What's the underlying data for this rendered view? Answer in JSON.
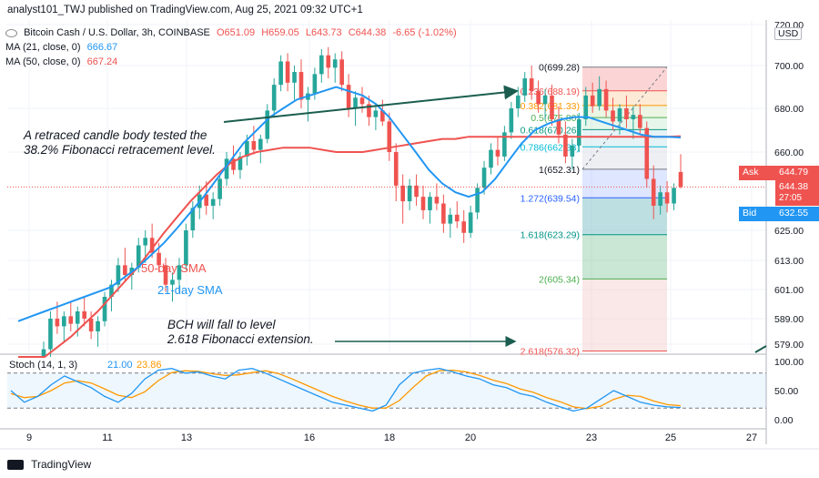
{
  "header": {
    "text": "analyst101_TWJ published on TradingView.com, Aug 25, 2021 09:32 UTC+1"
  },
  "legend": {
    "symbol": "Bitcoin Cash / U.S. Dollar, 3h, COINBASE",
    "open": "O651.09",
    "high": "H659.05",
    "low": "L643.73",
    "close": "C644.38",
    "change": "-6.65 (-1.02%)",
    "ma21_label": "MA (21, close, 0)",
    "ma21_value": "666.67",
    "ma50_label": "MA (50, close, 0)",
    "ma50_value": "667.24"
  },
  "price_axis": {
    "currency": "USD",
    "ticks": [
      "720.00",
      "700.00",
      "680.00",
      "660.00",
      "625.00",
      "613.00",
      "601.00",
      "589.00",
      "579.00"
    ],
    "ask_label": "Ask",
    "ask_value": "644.79",
    "last_value": "644.38",
    "countdown": "27:05",
    "bid_label": "Bid",
    "bid_value": "632.55"
  },
  "stoch": {
    "label": "Stoch (14, 1, 3)",
    "k_value": "21.00",
    "d_value": "23.86",
    "ticks": [
      "100.00",
      "50.00",
      "0.00"
    ]
  },
  "time_axis": {
    "ticks": [
      "9",
      "11",
      "13",
      "16",
      "18",
      "20",
      "23",
      "25",
      "27"
    ]
  },
  "annotations": {
    "fib_test": "A retraced candle body tested the\n38.2% Fibonacci retracement level.",
    "sma50": "50-day SMA",
    "sma21": "21-day SMA",
    "bch_fall": "BCH will fall to level\n2.618  Fibonacci extension."
  },
  "colors": {
    "up": "#26a69a",
    "down": "#ef5350",
    "ma21": "#2196f3",
    "ma50": "#ef5350",
    "stoch_k": "#2196f3",
    "stoch_d": "#ff9800"
  },
  "footer": {
    "brand": "TradingView"
  },
  "chart_data": {
    "type": "candlestick",
    "symbol": "BCH/USD",
    "timeframe": "3h",
    "fibonacci": [
      {
        "level": "0",
        "price": 699.28,
        "label": "0(699.28)"
      },
      {
        "level": "0.236",
        "price": 688.19,
        "label": "0.236(688.19)"
      },
      {
        "level": "0.382",
        "price": 681.33,
        "label": "0.382(681.33)"
      },
      {
        "level": "0.5",
        "price": 675.8,
        "label": "0.5(675.80)"
      },
      {
        "level": "0.618",
        "price": 670.26,
        "label": "0.618(670.26)"
      },
      {
        "level": "0.786",
        "price": 662.38,
        "label": "0.786(662.38)"
      },
      {
        "level": "1",
        "price": 652.31,
        "label": "1(652.31)"
      },
      {
        "level": "1.272",
        "price": 639.54,
        "label": "1.272(639.54)"
      },
      {
        "level": "1.618",
        "price": 623.29,
        "label": "1.618(623.29)"
      },
      {
        "level": "2",
        "price": 605.34,
        "label": "2(605.34)"
      },
      {
        "level": "2.618",
        "price": 576.32,
        "label": "2.618(576.32)"
      }
    ],
    "candles": [
      {
        "o": 570,
        "h": 580,
        "l": 566,
        "c": 577
      },
      {
        "o": 577,
        "h": 592,
        "l": 574,
        "c": 589
      },
      {
        "o": 589,
        "h": 596,
        "l": 583,
        "c": 586
      },
      {
        "o": 586,
        "h": 592,
        "l": 580,
        "c": 590
      },
      {
        "o": 590,
        "h": 596,
        "l": 584,
        "c": 587
      },
      {
        "o": 587,
        "h": 594,
        "l": 582,
        "c": 592
      },
      {
        "o": 592,
        "h": 598,
        "l": 586,
        "c": 589
      },
      {
        "o": 589,
        "h": 592,
        "l": 581,
        "c": 584
      },
      {
        "o": 584,
        "h": 590,
        "l": 578,
        "c": 588
      },
      {
        "o": 588,
        "h": 600,
        "l": 586,
        "c": 598
      },
      {
        "o": 598,
        "h": 605,
        "l": 592,
        "c": 603
      },
      {
        "o": 603,
        "h": 614,
        "l": 600,
        "c": 611
      },
      {
        "o": 611,
        "h": 618,
        "l": 604,
        "c": 607
      },
      {
        "o": 607,
        "h": 612,
        "l": 601,
        "c": 610
      },
      {
        "o": 610,
        "h": 622,
        "l": 608,
        "c": 619
      },
      {
        "o": 619,
        "h": 625,
        "l": 612,
        "c": 622
      },
      {
        "o": 622,
        "h": 628,
        "l": 614,
        "c": 616
      },
      {
        "o": 616,
        "h": 620,
        "l": 608,
        "c": 611
      },
      {
        "o": 611,
        "h": 614,
        "l": 600,
        "c": 603
      },
      {
        "o": 603,
        "h": 608,
        "l": 596,
        "c": 605
      },
      {
        "o": 605,
        "h": 614,
        "l": 600,
        "c": 611
      },
      {
        "o": 611,
        "h": 628,
        "l": 609,
        "c": 625
      },
      {
        "o": 625,
        "h": 638,
        "l": 622,
        "c": 635
      },
      {
        "o": 635,
        "h": 645,
        "l": 630,
        "c": 641
      },
      {
        "o": 641,
        "h": 647,
        "l": 632,
        "c": 636
      },
      {
        "o": 636,
        "h": 642,
        "l": 630,
        "c": 639
      },
      {
        "o": 639,
        "h": 650,
        "l": 636,
        "c": 648
      },
      {
        "o": 648,
        "h": 660,
        "l": 645,
        "c": 657
      },
      {
        "o": 657,
        "h": 663,
        "l": 650,
        "c": 652
      },
      {
        "o": 652,
        "h": 660,
        "l": 648,
        "c": 658
      },
      {
        "o": 658,
        "h": 668,
        "l": 654,
        "c": 665
      },
      {
        "o": 665,
        "h": 672,
        "l": 659,
        "c": 661
      },
      {
        "o": 661,
        "h": 668,
        "l": 655,
        "c": 666
      },
      {
        "o": 666,
        "h": 682,
        "l": 664,
        "c": 679
      },
      {
        "o": 679,
        "h": 694,
        "l": 676,
        "c": 691
      },
      {
        "o": 691,
        "h": 705,
        "l": 688,
        "c": 702
      },
      {
        "o": 702,
        "h": 706,
        "l": 688,
        "c": 692
      },
      {
        "o": 692,
        "h": 700,
        "l": 684,
        "c": 697
      },
      {
        "o": 697,
        "h": 703,
        "l": 680,
        "c": 684
      },
      {
        "o": 684,
        "h": 690,
        "l": 674,
        "c": 687
      },
      {
        "o": 687,
        "h": 699,
        "l": 684,
        "c": 696
      },
      {
        "o": 696,
        "h": 708,
        "l": 692,
        "c": 705
      },
      {
        "o": 705,
        "h": 709,
        "l": 694,
        "c": 699
      },
      {
        "o": 699,
        "h": 706,
        "l": 692,
        "c": 703
      },
      {
        "o": 703,
        "h": 707,
        "l": 688,
        "c": 691
      },
      {
        "o": 691,
        "h": 696,
        "l": 676,
        "c": 680
      },
      {
        "o": 680,
        "h": 688,
        "l": 672,
        "c": 685
      },
      {
        "o": 685,
        "h": 690,
        "l": 678,
        "c": 682
      },
      {
        "o": 682,
        "h": 686,
        "l": 672,
        "c": 676
      },
      {
        "o": 676,
        "h": 682,
        "l": 670,
        "c": 679
      },
      {
        "o": 679,
        "h": 684,
        "l": 672,
        "c": 674
      },
      {
        "o": 674,
        "h": 678,
        "l": 656,
        "c": 660
      },
      {
        "o": 660,
        "h": 664,
        "l": 638,
        "c": 645
      },
      {
        "o": 645,
        "h": 650,
        "l": 628,
        "c": 638
      },
      {
        "o": 638,
        "h": 648,
        "l": 634,
        "c": 645
      },
      {
        "o": 645,
        "h": 650,
        "l": 636,
        "c": 640
      },
      {
        "o": 640,
        "h": 645,
        "l": 630,
        "c": 634
      },
      {
        "o": 634,
        "h": 642,
        "l": 628,
        "c": 640
      },
      {
        "o": 640,
        "h": 646,
        "l": 634,
        "c": 637
      },
      {
        "o": 637,
        "h": 641,
        "l": 624,
        "c": 628
      },
      {
        "o": 628,
        "h": 635,
        "l": 622,
        "c": 632
      },
      {
        "o": 632,
        "h": 638,
        "l": 626,
        "c": 629
      },
      {
        "o": 629,
        "h": 634,
        "l": 620,
        "c": 624
      },
      {
        "o": 624,
        "h": 636,
        "l": 622,
        "c": 633
      },
      {
        "o": 633,
        "h": 646,
        "l": 630,
        "c": 644
      },
      {
        "o": 644,
        "h": 656,
        "l": 641,
        "c": 653
      },
      {
        "o": 653,
        "h": 664,
        "l": 650,
        "c": 661
      },
      {
        "o": 661,
        "h": 667,
        "l": 654,
        "c": 658
      },
      {
        "o": 658,
        "h": 672,
        "l": 656,
        "c": 669
      },
      {
        "o": 669,
        "h": 683,
        "l": 666,
        "c": 680
      },
      {
        "o": 680,
        "h": 690,
        "l": 676,
        "c": 686
      },
      {
        "o": 686,
        "h": 697,
        "l": 683,
        "c": 694
      },
      {
        "o": 694,
        "h": 700,
        "l": 684,
        "c": 688
      },
      {
        "o": 688,
        "h": 693,
        "l": 678,
        "c": 682
      },
      {
        "o": 682,
        "h": 689,
        "l": 675,
        "c": 686
      },
      {
        "o": 686,
        "h": 691,
        "l": 672,
        "c": 675
      },
      {
        "o": 675,
        "h": 681,
        "l": 664,
        "c": 668
      },
      {
        "o": 668,
        "h": 674,
        "l": 655,
        "c": 658
      },
      {
        "o": 658,
        "h": 666,
        "l": 652,
        "c": 663
      },
      {
        "o": 663,
        "h": 678,
        "l": 660,
        "c": 675
      },
      {
        "o": 675,
        "h": 690,
        "l": 672,
        "c": 686
      },
      {
        "o": 686,
        "h": 692,
        "l": 678,
        "c": 681
      },
      {
        "o": 681,
        "h": 695,
        "l": 679,
        "c": 689
      },
      {
        "o": 689,
        "h": 693,
        "l": 676,
        "c": 679
      },
      {
        "o": 679,
        "h": 685,
        "l": 670,
        "c": 674
      },
      {
        "o": 674,
        "h": 682,
        "l": 668,
        "c": 680
      },
      {
        "o": 680,
        "h": 686,
        "l": 671,
        "c": 675
      },
      {
        "o": 675,
        "h": 681,
        "l": 666,
        "c": 677
      },
      {
        "o": 677,
        "h": 682,
        "l": 668,
        "c": 671
      },
      {
        "o": 671,
        "h": 674,
        "l": 644,
        "c": 648
      },
      {
        "o": 648,
        "h": 654,
        "l": 630,
        "c": 636
      },
      {
        "o": 636,
        "h": 645,
        "l": 632,
        "c": 642
      },
      {
        "o": 642,
        "h": 647,
        "l": 633,
        "c": 637
      },
      {
        "o": 637,
        "h": 646,
        "l": 634,
        "c": 644
      },
      {
        "o": 651.09,
        "h": 659.05,
        "l": 643.73,
        "c": 644.38
      }
    ],
    "ma21": [
      588,
      590,
      592,
      594,
      596,
      598,
      600,
      602,
      606,
      610,
      615,
      620,
      626,
      633,
      640,
      648,
      656,
      664,
      670,
      676,
      680,
      684,
      686,
      688,
      690,
      688,
      686,
      682,
      676,
      668,
      660,
      652,
      646,
      642,
      640,
      642,
      648,
      656,
      664,
      670,
      673,
      675,
      676,
      676,
      674,
      672,
      670,
      668,
      667,
      667,
      666.67
    ],
    "ma50": [
      566,
      570,
      574,
      578,
      582,
      587,
      592,
      598,
      604,
      610,
      617,
      624,
      631,
      638,
      644,
      650,
      655,
      658,
      660,
      661,
      662,
      662,
      662,
      661,
      660,
      660,
      660,
      661,
      662,
      663,
      664,
      665,
      666,
      666,
      667,
      667,
      667,
      667,
      667,
      667,
      667,
      667,
      667,
      667,
      667,
      667,
      667,
      667,
      667,
      667,
      667.24
    ],
    "stoch_k": [
      50,
      30,
      40,
      60,
      75,
      65,
      55,
      40,
      30,
      45,
      70,
      85,
      88,
      80,
      82,
      75,
      70,
      85,
      88,
      80,
      70,
      60,
      50,
      40,
      30,
      25,
      20,
      15,
      25,
      60,
      80,
      85,
      88,
      82,
      75,
      70,
      60,
      55,
      45,
      40,
      30,
      22,
      15,
      20,
      35,
      50,
      40,
      30,
      25,
      22,
      21
    ],
    "stoch_d": [
      45,
      38,
      40,
      50,
      63,
      67,
      63,
      53,
      42,
      38,
      48,
      67,
      81,
      84,
      83,
      79,
      76,
      77,
      81,
      84,
      79,
      70,
      60,
      50,
      40,
      32,
      25,
      20,
      20,
      33,
      55,
      75,
      84,
      85,
      82,
      76,
      68,
      62,
      53,
      47,
      38,
      31,
      22,
      19,
      23,
      35,
      42,
      40,
      32,
      26,
      23.86
    ],
    "ylim": [
      574,
      722
    ],
    "stoch_ylim": [
      0,
      100
    ]
  }
}
